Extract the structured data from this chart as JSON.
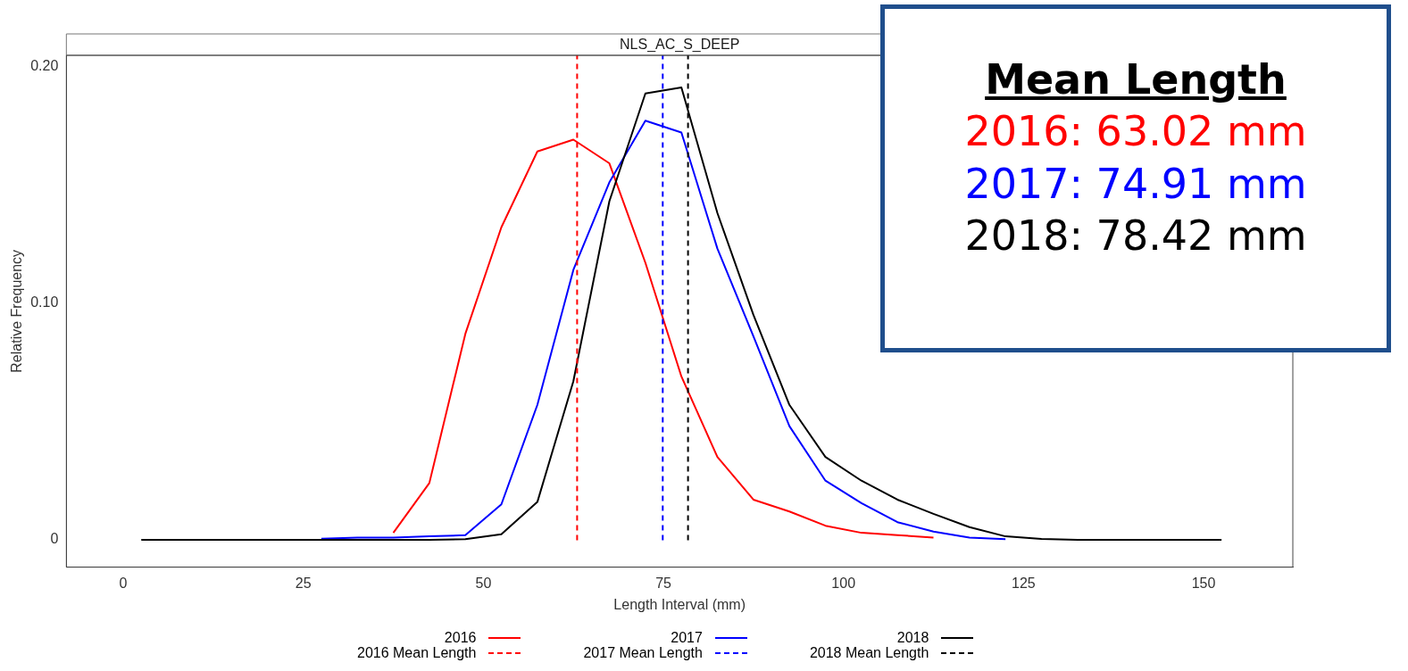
{
  "chart_data": {
    "type": "line",
    "title": "NLS_AC_S_DEEP",
    "xlabel": "Length Interval (mm)",
    "ylabel": "Relative Frequency",
    "x": [
      2.5,
      7.5,
      12.5,
      17.5,
      22.5,
      27.5,
      32.5,
      37.5,
      42.5,
      47.5,
      52.5,
      57.5,
      62.5,
      67.5,
      72.5,
      77.5,
      82.5,
      87.5,
      92.5,
      97.5,
      102.5,
      107.5,
      112.5,
      117.5,
      122.5,
      127.5,
      132.5,
      137.5,
      142.5,
      147.5,
      152.5
    ],
    "series": [
      {
        "name": "2016",
        "color": "#ff0000",
        "values": [
          null,
          null,
          null,
          null,
          null,
          null,
          null,
          0.003,
          0.024,
          0.087,
          0.132,
          0.164,
          0.169,
          0.159,
          0.117,
          0.069,
          0.035,
          0.017,
          0.012,
          0.006,
          0.003,
          0.002,
          0.001,
          null,
          null,
          null,
          null,
          null,
          null,
          null,
          null
        ]
      },
      {
        "name": "2017",
        "color": "#0000ff",
        "values": [
          null,
          null,
          null,
          null,
          null,
          0.0005,
          0.001,
          0.001,
          0.0015,
          0.002,
          0.015,
          0.057,
          0.114,
          0.151,
          0.177,
          0.172,
          0.123,
          0.086,
          0.048,
          0.025,
          0.0155,
          0.0075,
          0.0035,
          0.001,
          0.0003,
          null,
          null,
          null,
          null,
          null,
          null
        ]
      },
      {
        "name": "2018",
        "color": "#000000",
        "values": [
          0,
          0,
          0,
          0,
          0,
          0,
          0,
          0,
          0,
          0.0003,
          0.0024,
          0.016,
          0.067,
          0.143,
          0.1885,
          0.191,
          0.138,
          0.095,
          0.057,
          0.035,
          0.025,
          0.017,
          0.011,
          0.0054,
          0.0015,
          0.0004,
          0,
          0,
          0,
          0,
          0
        ]
      }
    ],
    "ref_lines": [
      {
        "axis": "x",
        "value": 63.02,
        "label": "2016 Mean Length",
        "color": "#ff0000",
        "line_style": "dashed"
      },
      {
        "axis": "x",
        "value": 74.91,
        "label": "2017 Mean Length",
        "color": "#0000ff",
        "line_style": "dashed"
      },
      {
        "axis": "x",
        "value": 78.42,
        "label": "2018 Mean Length",
        "color": "#000000",
        "line_style": "dashed"
      }
    ],
    "annotations": [
      "Mean Length",
      "2016: 63.02 mm",
      "2017: 74.91 mm",
      "2018: 78.42 mm"
    ],
    "xlim": [
      -7.9,
      162.4
    ],
    "xticks": [
      0,
      25,
      50,
      75,
      100,
      125,
      150
    ],
    "ylim": [
      -0.0115,
      0.2046
    ],
    "yticks": [
      {
        "value": 0,
        "label": "0"
      },
      {
        "value": 0.1,
        "label": "0.10"
      },
      {
        "value": 0.2,
        "label": "0.20"
      }
    ],
    "grid": false,
    "legend": "bottom",
    "marker": "none",
    "line_style": "solid"
  }
}
